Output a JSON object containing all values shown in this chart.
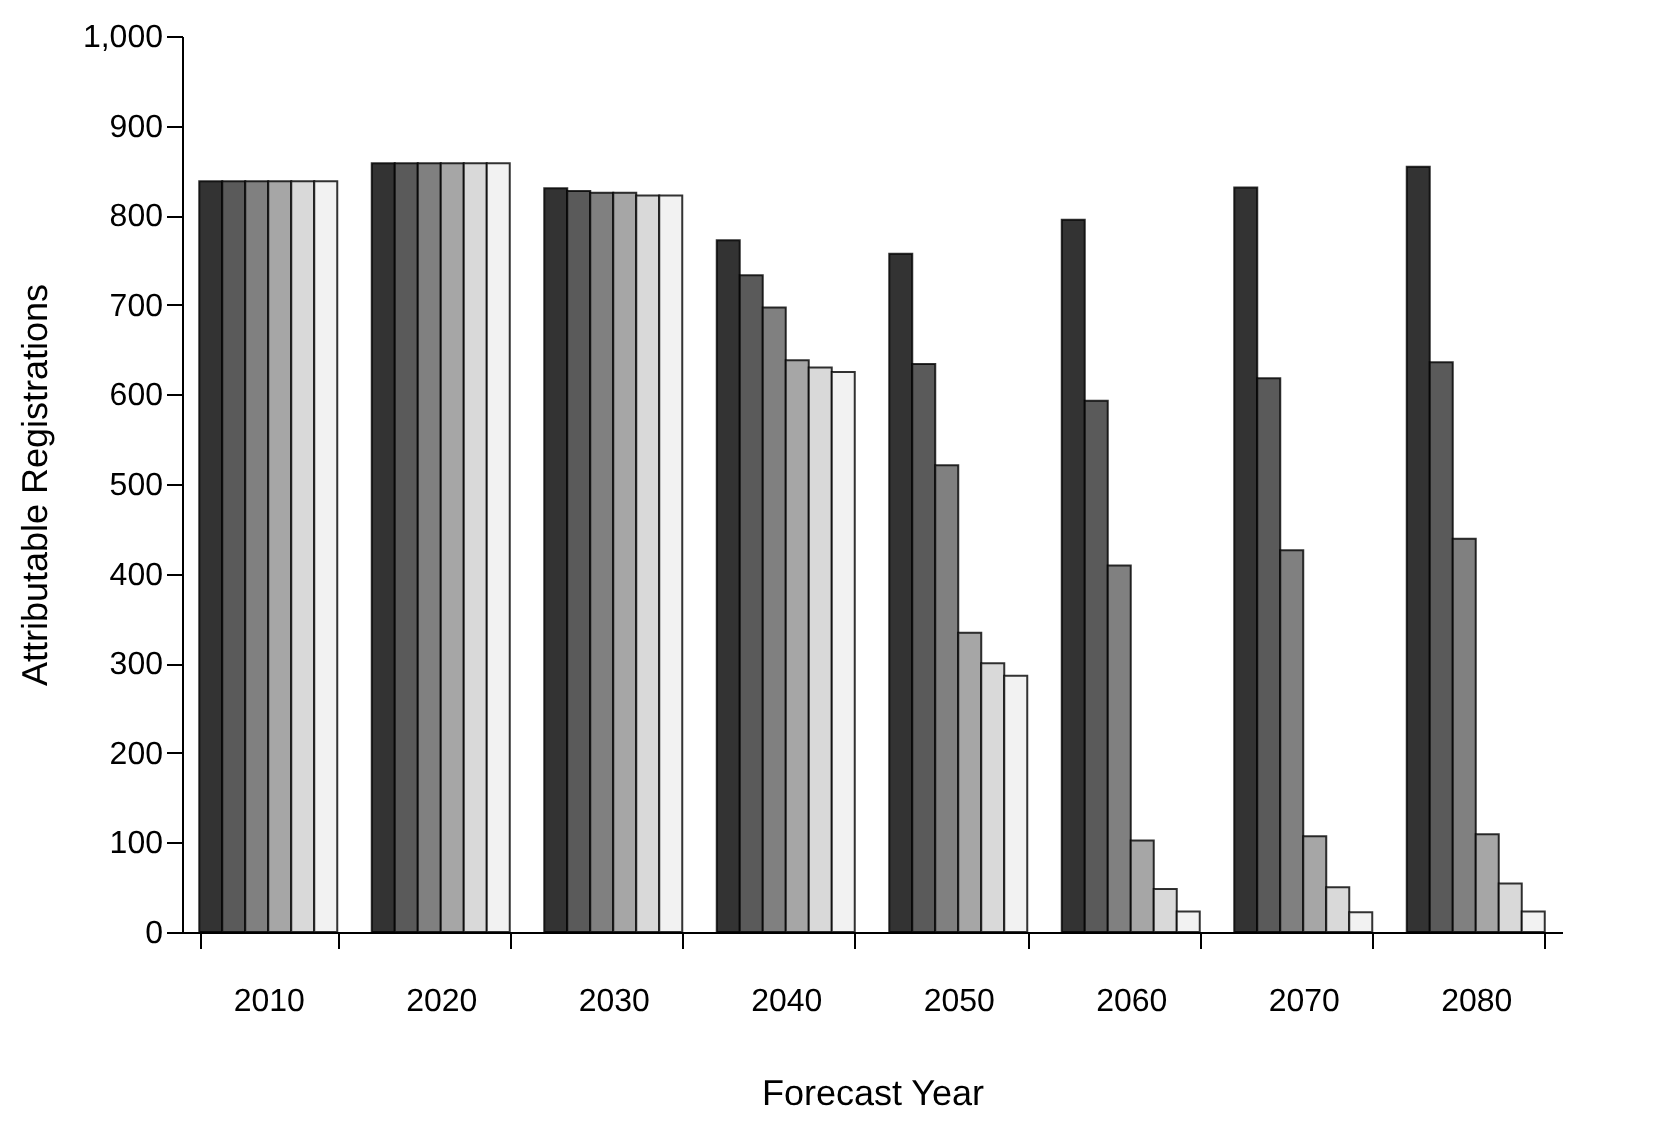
{
  "chart_data": {
    "type": "bar",
    "xlabel": "Forecast Year",
    "ylabel": "Attributable Registrations",
    "categories": [
      "2010",
      "2020",
      "2030",
      "2040",
      "2050",
      "2060",
      "2070",
      "2080"
    ],
    "series": [
      {
        "color": "#333333",
        "values": [
          838,
          858,
          830,
          772,
          757,
          795,
          831,
          854
        ]
      },
      {
        "color": "#5a5a5a",
        "values": [
          838,
          858,
          827,
          733,
          634,
          593,
          618,
          636
        ]
      },
      {
        "color": "#808080",
        "values": [
          838,
          858,
          825,
          697,
          521,
          409,
          426,
          439
        ]
      },
      {
        "color": "#a6a6a6",
        "values": [
          838,
          858,
          825,
          638,
          334,
          102,
          107,
          109
        ]
      },
      {
        "color": "#d9d9d9",
        "values": [
          838,
          858,
          822,
          630,
          300,
          48,
          50,
          54
        ]
      },
      {
        "color": "#f2f2f2",
        "values": [
          838,
          858,
          822,
          625,
          286,
          23,
          22,
          23
        ]
      }
    ],
    "ylim": [
      0,
      1000
    ],
    "yticks": [
      0,
      100,
      200,
      300,
      400,
      500,
      600,
      700,
      800,
      900,
      {
        "value": 1000,
        "label": "1,000"
      }
    ],
    "grid": false,
    "legend": false
  }
}
